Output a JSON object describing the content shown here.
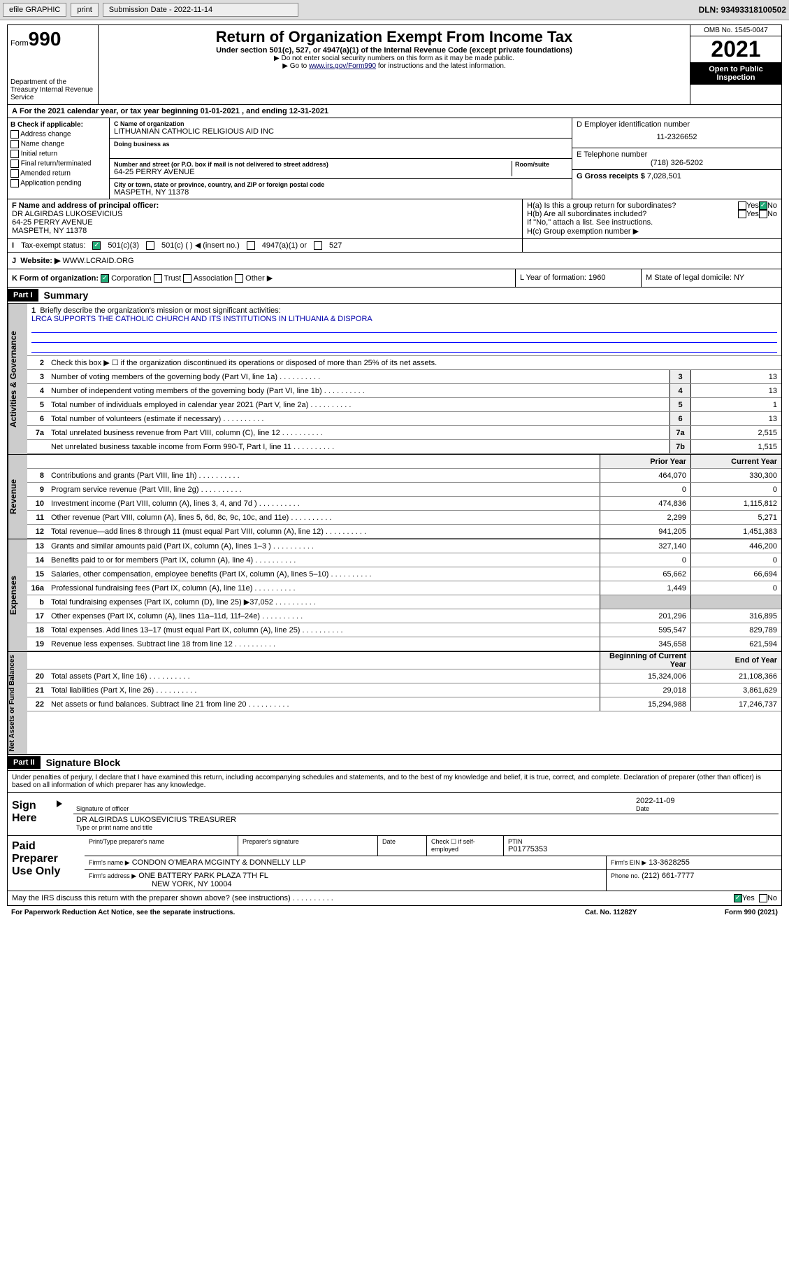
{
  "toolbar": {
    "efile": "efile GRAPHIC",
    "print": "print",
    "sub_label": "Submission Date - 2022-11-14",
    "dln": "DLN: 93493318100502"
  },
  "header": {
    "form_label": "Form",
    "form_num": "990",
    "dept": "Department of the Treasury\nInternal Revenue Service",
    "title": "Return of Organization Exempt From Income Tax",
    "subtitle": "Under section 501(c), 527, or 4947(a)(1) of the Internal Revenue Code (except private foundations)",
    "note1": "▶ Do not enter social security numbers on this form as it may be made public.",
    "note2_pre": "▶ Go to ",
    "note2_link": "www.irs.gov/Form990",
    "note2_post": " for instructions and the latest information.",
    "omb": "OMB No. 1545-0047",
    "year": "2021",
    "open": "Open to Public Inspection"
  },
  "period": {
    "text_pre": "For the 2021 calendar year, or tax year beginning ",
    "begin": "01-01-2021",
    "mid": " , and ending ",
    "end": "12-31-2021"
  },
  "colB": {
    "hdr": "B Check if applicable:",
    "items": [
      "Address change",
      "Name change",
      "Initial return",
      "Final return/terminated",
      "Amended return",
      "Application pending"
    ]
  },
  "colC": {
    "name_lbl": "C Name of organization",
    "name": "LITHUANIAN CATHOLIC RELIGIOUS AID INC",
    "dba_lbl": "Doing business as",
    "street_lbl": "Number and street (or P.O. box if mail is not delivered to street address)",
    "room_lbl": "Room/suite",
    "street": "64-25 PERRY AVENUE",
    "city_lbl": "City or town, state or province, country, and ZIP or foreign postal code",
    "city": "MASPETH, NY  11378"
  },
  "colD": {
    "ein_lbl": "D Employer identification number",
    "ein": "11-2326652",
    "phone_lbl": "E Telephone number",
    "phone": "(718) 326-5202",
    "gross_lbl": "G Gross receipts $",
    "gross": "7,028,501"
  },
  "rowF": {
    "lbl": "F  Name and address of principal officer:",
    "name": "DR ALGIRDAS LUKOSEVICIUS",
    "addr1": "64-25 PERRY AVENUE",
    "addr2": "MASPETH, NY  11378"
  },
  "rowH": {
    "a": "H(a)  Is this a group return for subordinates?",
    "b": "H(b)  Are all subordinates included?",
    "b_note": "If \"No,\" attach a list. See instructions.",
    "c": "H(c)  Group exemption number ▶",
    "yes": "Yes",
    "no": "No"
  },
  "rowI": {
    "lbl": "Tax-exempt status:",
    "opts": [
      "501(c)(3)",
      "501(c) (   ) ◀ (insert no.)",
      "4947(a)(1) or",
      "527"
    ]
  },
  "rowJ": {
    "lbl": "Website: ▶",
    "val": "WWW.LCRAID.ORG"
  },
  "rowK": {
    "lbl": "K Form of organization:",
    "opts": [
      "Corporation",
      "Trust",
      "Association",
      "Other ▶"
    ],
    "L": "L Year of formation: 1960",
    "M": "M State of legal domicile: NY"
  },
  "part1": {
    "hdr": "Part I",
    "title": "Summary",
    "q1": "Briefly describe the organization's mission or most significant activities:",
    "mission": "LRCA SUPPORTS THE CATHOLIC CHURCH AND ITS INSTITUTIONS IN LITHUANIA & DISPORA",
    "q2": "Check this box ▶ ☐  if the organization discontinued its operations or disposed of more than 25% of its net assets.",
    "col_prior": "Prior Year",
    "col_curr": "Current Year",
    "col_beg": "Beginning of Current Year",
    "col_end": "End of Year"
  },
  "sections": {
    "gov": "Activities & Governance",
    "rev": "Revenue",
    "exp": "Expenses",
    "net": "Net Assets or Fund Balances"
  },
  "gov_lines": [
    {
      "n": "3",
      "d": "Number of voting members of the governing body (Part VI, line 1a)",
      "box": "3",
      "v": "13"
    },
    {
      "n": "4",
      "d": "Number of independent voting members of the governing body (Part VI, line 1b)",
      "box": "4",
      "v": "13"
    },
    {
      "n": "5",
      "d": "Total number of individuals employed in calendar year 2021 (Part V, line 2a)",
      "box": "5",
      "v": "1"
    },
    {
      "n": "6",
      "d": "Total number of volunteers (estimate if necessary)",
      "box": "6",
      "v": "13"
    },
    {
      "n": "7a",
      "d": "Total unrelated business revenue from Part VIII, column (C), line 12",
      "box": "7a",
      "v": "2,515"
    },
    {
      "n": "",
      "d": "Net unrelated business taxable income from Form 990-T, Part I, line 11",
      "box": "7b",
      "v": "1,515"
    }
  ],
  "rev_lines": [
    {
      "n": "8",
      "d": "Contributions and grants (Part VIII, line 1h)",
      "p": "464,070",
      "c": "330,300"
    },
    {
      "n": "9",
      "d": "Program service revenue (Part VIII, line 2g)",
      "p": "0",
      "c": "0"
    },
    {
      "n": "10",
      "d": "Investment income (Part VIII, column (A), lines 3, 4, and 7d )",
      "p": "474,836",
      "c": "1,115,812"
    },
    {
      "n": "11",
      "d": "Other revenue (Part VIII, column (A), lines 5, 6d, 8c, 9c, 10c, and 11e)",
      "p": "2,299",
      "c": "5,271"
    },
    {
      "n": "12",
      "d": "Total revenue—add lines 8 through 11 (must equal Part VIII, column (A), line 12)",
      "p": "941,205",
      "c": "1,451,383"
    }
  ],
  "exp_lines": [
    {
      "n": "13",
      "d": "Grants and similar amounts paid (Part IX, column (A), lines 1–3 )",
      "p": "327,140",
      "c": "446,200"
    },
    {
      "n": "14",
      "d": "Benefits paid to or for members (Part IX, column (A), line 4)",
      "p": "0",
      "c": "0"
    },
    {
      "n": "15",
      "d": "Salaries, other compensation, employee benefits (Part IX, column (A), lines 5–10)",
      "p": "65,662",
      "c": "66,694"
    },
    {
      "n": "16a",
      "d": "Professional fundraising fees (Part IX, column (A), line 11e)",
      "p": "1,449",
      "c": "0"
    },
    {
      "n": "b",
      "d": "Total fundraising expenses (Part IX, column (D), line 25) ▶37,052",
      "p": "",
      "c": "",
      "shade": true
    },
    {
      "n": "17",
      "d": "Other expenses (Part IX, column (A), lines 11a–11d, 11f–24e)",
      "p": "201,296",
      "c": "316,895"
    },
    {
      "n": "18",
      "d": "Total expenses. Add lines 13–17 (must equal Part IX, column (A), line 25)",
      "p": "595,547",
      "c": "829,789"
    },
    {
      "n": "19",
      "d": "Revenue less expenses. Subtract line 18 from line 12",
      "p": "345,658",
      "c": "621,594"
    }
  ],
  "net_lines": [
    {
      "n": "20",
      "d": "Total assets (Part X, line 16)",
      "p": "15,324,006",
      "c": "21,108,366"
    },
    {
      "n": "21",
      "d": "Total liabilities (Part X, line 26)",
      "p": "29,018",
      "c": "3,861,629"
    },
    {
      "n": "22",
      "d": "Net assets or fund balances. Subtract line 21 from line 20",
      "p": "15,294,988",
      "c": "17,246,737"
    }
  ],
  "part2": {
    "hdr": "Part II",
    "title": "Signature Block",
    "declare": "Under penalties of perjury, I declare that I have examined this return, including accompanying schedules and statements, and to the best of my knowledge and belief, it is true, correct, and complete. Declaration of preparer (other than officer) is based on all information of which preparer has any knowledge."
  },
  "sign": {
    "label": "Sign Here",
    "sig_cap": "Signature of officer",
    "date": "2022-11-09",
    "date_cap": "Date",
    "name": "DR ALGIRDAS LUKOSEVICIUS  TREASURER",
    "name_cap": "Type or print name and title"
  },
  "paid": {
    "label": "Paid Preparer Use Only",
    "c1": "Print/Type preparer's name",
    "c2": "Preparer's signature",
    "c3": "Date",
    "c4": "Check ☐ if self-employed",
    "c5_lbl": "PTIN",
    "c5": "P01775353",
    "firm_lbl": "Firm's name    ▶",
    "firm": "CONDON O'MEARA MCGINTY & DONNELLY LLP",
    "ein_lbl": "Firm's EIN ▶",
    "ein": "13-3628255",
    "addr_lbl": "Firm's address ▶",
    "addr1": "ONE BATTERY PARK PLAZA 7TH FL",
    "addr2": "NEW YORK, NY  10004",
    "phone_lbl": "Phone no.",
    "phone": "(212) 661-7777"
  },
  "disclose": {
    "q": "May the IRS discuss this return with the preparer shown above? (see instructions)",
    "yes": "Yes",
    "no": "No"
  },
  "footer": {
    "left": "For Paperwork Reduction Act Notice, see the separate instructions.",
    "mid": "Cat. No. 11282Y",
    "right": "Form 990 (2021)"
  }
}
